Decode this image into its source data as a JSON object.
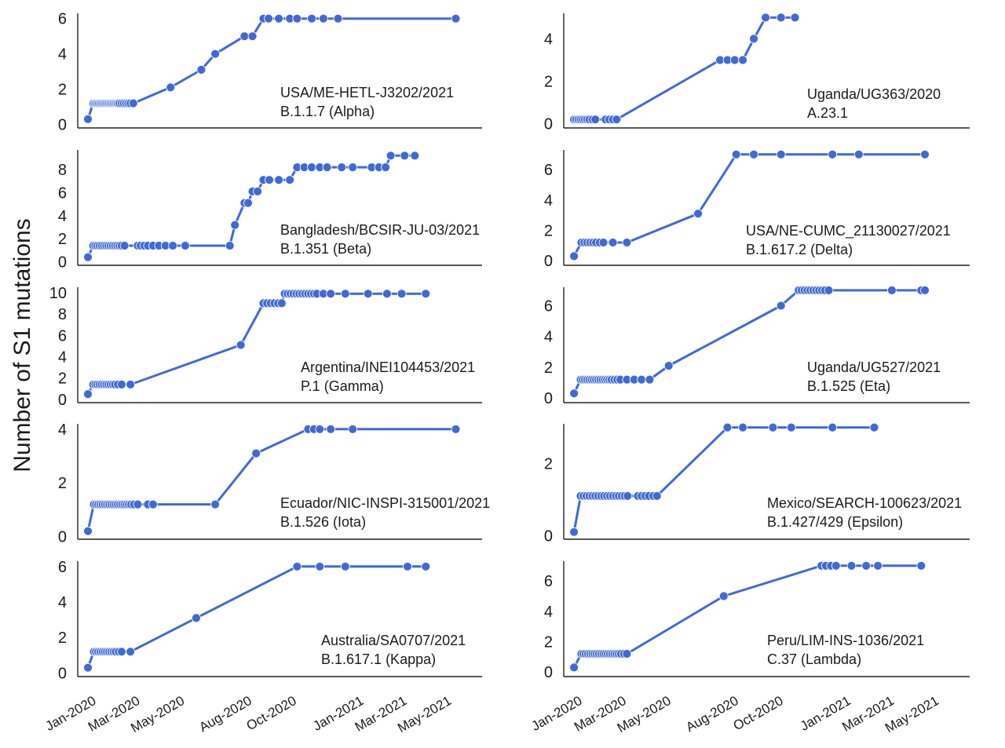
{
  "y_axis_label": "Number of S1 mutations",
  "chart_data": [
    {
      "type": "line",
      "strain": "USA/ME-HETL-J3202/2021",
      "lineage": "B.1.1.7 (Alpha)",
      "yticks": [
        0,
        2,
        4,
        6
      ],
      "ylim": [
        -0.2,
        6.3
      ],
      "x": [
        "2019-12-24",
        "2019-12-31",
        "2020-01-02",
        "2020-01-04",
        "2020-01-06",
        "2020-01-08",
        "2020-01-10",
        "2020-01-12",
        "2020-01-14",
        "2020-01-16",
        "2020-01-18",
        "2020-01-20",
        "2020-01-22",
        "2020-01-24",
        "2020-01-26",
        "2020-01-28",
        "2020-01-30",
        "2020-02-01",
        "2020-02-03",
        "2020-02-05",
        "2020-02-08",
        "2020-02-11",
        "2020-02-14",
        "2020-02-17",
        "2020-02-20",
        "2020-02-24",
        "2020-04-15",
        "2020-05-27",
        "2020-06-15",
        "2020-07-25",
        "2020-08-05",
        "2020-08-20",
        "2020-08-27",
        "2020-09-10",
        "2020-09-25",
        "2020-10-05",
        "2020-10-25",
        "2020-11-10",
        "2020-11-30",
        "2021-05-10"
      ],
      "y": [
        0.3,
        1.2,
        1.2,
        1.2,
        1.2,
        1.2,
        1.2,
        1.2,
        1.2,
        1.2,
        1.2,
        1.2,
        1.2,
        1.2,
        1.2,
        1.2,
        1.2,
        1.2,
        1.2,
        1.2,
        1.2,
        1.2,
        1.2,
        1.2,
        1.2,
        1.2,
        2.1,
        3.1,
        4.0,
        5.0,
        5.0,
        6.0,
        6.0,
        6.0,
        6.0,
        6.0,
        6.0,
        6.0,
        6.0,
        6.0
      ]
    },
    {
      "type": "line",
      "strain": "Uganda/UG363/2020",
      "lineage": "A.23.1",
      "yticks": [
        0,
        2,
        4
      ],
      "ylim": [
        -0.2,
        5.2
      ],
      "x": [
        "2019-12-24",
        "2019-12-27",
        "2019-12-30",
        "2020-01-02",
        "2020-01-05",
        "2020-01-08",
        "2020-01-11",
        "2020-01-14",
        "2020-01-18",
        "2020-01-22",
        "2020-02-05",
        "2020-02-10",
        "2020-02-15",
        "2020-02-20",
        "2020-07-10",
        "2020-07-20",
        "2020-07-30",
        "2020-08-10",
        "2020-08-25",
        "2020-09-10",
        "2020-10-01",
        "2020-10-20"
      ],
      "y": [
        0.2,
        0.2,
        0.2,
        0.2,
        0.2,
        0.2,
        0.2,
        0.2,
        0.2,
        0.2,
        0.2,
        0.2,
        0.2,
        0.2,
        3.0,
        3.0,
        3.0,
        3.0,
        4.0,
        5.0,
        5.0,
        5.0
      ]
    },
    {
      "type": "line",
      "strain": "Bangladesh/BCSIR-JU-03/2021",
      "lineage": "B.1.351 (Beta)",
      "yticks": [
        0,
        2,
        4,
        6,
        8
      ],
      "ylim": [
        -0.3,
        9.7
      ],
      "x": [
        "2019-12-24",
        "2019-12-31",
        "2020-01-03",
        "2020-01-06",
        "2020-01-09",
        "2020-01-12",
        "2020-01-15",
        "2020-01-18",
        "2020-01-21",
        "2020-01-24",
        "2020-01-27",
        "2020-01-30",
        "2020-02-02",
        "2020-02-05",
        "2020-02-08",
        "2020-02-12",
        "2020-03-01",
        "2020-03-05",
        "2020-03-10",
        "2020-03-15",
        "2020-03-22",
        "2020-03-30",
        "2020-04-08",
        "2020-04-18",
        "2020-05-05",
        "2020-07-05",
        "2020-07-12",
        "2020-07-25",
        "2020-07-30",
        "2020-08-05",
        "2020-08-12",
        "2020-08-20",
        "2020-08-28",
        "2020-09-10",
        "2020-09-25",
        "2020-10-05",
        "2020-10-15",
        "2020-10-25",
        "2020-11-05",
        "2020-11-15",
        "2020-12-05",
        "2020-12-20",
        "2021-01-15",
        "2021-01-25",
        "2021-02-03",
        "2021-02-10",
        "2021-03-01",
        "2021-03-15"
      ],
      "y": [
        0.4,
        1.4,
        1.4,
        1.4,
        1.4,
        1.4,
        1.4,
        1.4,
        1.4,
        1.4,
        1.4,
        1.4,
        1.4,
        1.4,
        1.4,
        1.4,
        1.4,
        1.4,
        1.4,
        1.4,
        1.4,
        1.4,
        1.4,
        1.4,
        1.4,
        1.4,
        3.2,
        5.1,
        5.1,
        6.1,
        6.1,
        7.1,
        7.1,
        7.1,
        7.1,
        8.2,
        8.2,
        8.2,
        8.2,
        8.2,
        8.2,
        8.2,
        8.2,
        8.2,
        8.2,
        9.2,
        9.2,
        9.2
      ]
    },
    {
      "type": "line",
      "strain": "USA/NE-CUMC_21130027/2021",
      "lineage": "B.1.617.2 (Delta)",
      "yticks": [
        0,
        2,
        4,
        6
      ],
      "ylim": [
        -0.3,
        7.3
      ],
      "x": [
        "2019-12-24",
        "2020-01-03",
        "2020-01-07",
        "2020-01-11",
        "2020-01-15",
        "2020-01-19",
        "2020-01-23",
        "2020-01-28",
        "2020-02-02",
        "2020-02-15",
        "2020-03-05",
        "2020-06-10",
        "2020-08-01",
        "2020-08-25",
        "2020-10-01",
        "2020-12-10",
        "2021-01-15",
        "2021-04-15"
      ],
      "y": [
        0.3,
        1.2,
        1.2,
        1.2,
        1.2,
        1.2,
        1.2,
        1.2,
        1.2,
        1.2,
        1.2,
        3.1,
        7.0,
        7.0,
        7.0,
        7.0,
        7.0,
        7.0
      ]
    },
    {
      "type": "line",
      "strain": "Argentina/INEI104453/2021",
      "lineage": "P.1 (Gamma)",
      "yticks": [
        0,
        2,
        4,
        6,
        8,
        10
      ],
      "ylim": [
        -0.3,
        10.5
      ],
      "x": [
        "2019-12-24",
        "2019-12-31",
        "2020-01-03",
        "2020-01-06",
        "2020-01-09",
        "2020-01-12",
        "2020-01-15",
        "2020-01-18",
        "2020-01-21",
        "2020-01-24",
        "2020-01-27",
        "2020-01-30",
        "2020-02-03",
        "2020-02-08",
        "2020-02-20",
        "2020-07-20",
        "2020-08-20",
        "2020-08-25",
        "2020-08-30",
        "2020-09-04",
        "2020-09-09",
        "2020-09-14",
        "2020-09-18",
        "2020-09-22",
        "2020-09-26",
        "2020-09-30",
        "2020-10-04",
        "2020-10-08",
        "2020-10-12",
        "2020-10-16",
        "2020-10-20",
        "2020-10-24",
        "2020-10-28",
        "2020-11-01",
        "2020-11-10",
        "2020-11-20",
        "2020-12-10",
        "2021-01-10",
        "2021-02-05",
        "2021-02-25",
        "2021-03-30"
      ],
      "y": [
        0.5,
        1.4,
        1.4,
        1.4,
        1.4,
        1.4,
        1.4,
        1.4,
        1.4,
        1.4,
        1.4,
        1.4,
        1.4,
        1.4,
        1.4,
        5.1,
        9.0,
        9.0,
        9.0,
        9.0,
        9.0,
        9.0,
        9.9,
        9.9,
        9.9,
        9.9,
        9.9,
        9.9,
        9.9,
        9.9,
        9.9,
        9.9,
        9.9,
        9.9,
        9.9,
        9.9,
        9.9,
        9.9,
        9.9,
        9.9,
        9.9
      ]
    },
    {
      "type": "line",
      "strain": "Uganda/UG527/2021",
      "lineage": "B.1.525 (Eta)",
      "yticks": [
        0,
        2,
        4,
        6
      ],
      "ylim": [
        -0.3,
        7.2
      ],
      "x": [
        "2019-12-24",
        "2020-01-02",
        "2020-01-05",
        "2020-01-08",
        "2020-01-11",
        "2020-01-14",
        "2020-01-17",
        "2020-01-20",
        "2020-01-23",
        "2020-01-26",
        "2020-01-29",
        "2020-02-01",
        "2020-02-04",
        "2020-02-07",
        "2020-02-10",
        "2020-02-13",
        "2020-02-17",
        "2020-02-21",
        "2020-02-25",
        "2020-03-05",
        "2020-03-15",
        "2020-03-25",
        "2020-04-05",
        "2020-05-01",
        "2020-10-01",
        "2020-10-25",
        "2020-10-29",
        "2020-11-02",
        "2020-11-06",
        "2020-11-10",
        "2020-11-14",
        "2020-11-18",
        "2020-11-22",
        "2020-11-26",
        "2020-11-30",
        "2020-12-05",
        "2021-03-01",
        "2021-04-10",
        "2021-04-15"
      ],
      "y": [
        0.3,
        1.2,
        1.2,
        1.2,
        1.2,
        1.2,
        1.2,
        1.2,
        1.2,
        1.2,
        1.2,
        1.2,
        1.2,
        1.2,
        1.2,
        1.2,
        1.2,
        1.2,
        1.2,
        1.2,
        1.2,
        1.2,
        1.2,
        2.1,
        6.0,
        7.0,
        7.0,
        7.0,
        7.0,
        7.0,
        7.0,
        7.0,
        7.0,
        7.0,
        7.0,
        7.0,
        7.0,
        7.0,
        7.0
      ]
    },
    {
      "type": "line",
      "strain": "Ecuador/NIC-INSPI-315001/2021",
      "lineage": "B.1.526 (Iota)",
      "yticks": [
        0,
        2,
        4
      ],
      "ylim": [
        -0.1,
        4.2
      ],
      "x": [
        "2019-12-24",
        "2020-01-01",
        "2020-01-04",
        "2020-01-07",
        "2020-01-10",
        "2020-01-13",
        "2020-01-16",
        "2020-01-19",
        "2020-01-22",
        "2020-01-25",
        "2020-01-28",
        "2020-01-31",
        "2020-02-03",
        "2020-02-06",
        "2020-02-09",
        "2020-02-12",
        "2020-02-15",
        "2020-02-18",
        "2020-02-21",
        "2020-02-25",
        "2020-03-01",
        "2020-03-15",
        "2020-03-22",
        "2020-06-15",
        "2020-08-10",
        "2020-10-20",
        "2020-10-28",
        "2020-11-05",
        "2020-11-20",
        "2020-12-20",
        "2021-05-10"
      ],
      "y": [
        0.2,
        1.2,
        1.2,
        1.2,
        1.2,
        1.2,
        1.2,
        1.2,
        1.2,
        1.2,
        1.2,
        1.2,
        1.2,
        1.2,
        1.2,
        1.2,
        1.2,
        1.2,
        1.2,
        1.2,
        1.2,
        1.2,
        1.2,
        1.2,
        3.1,
        4.0,
        4.0,
        4.0,
        4.0,
        4.0,
        4.0
      ]
    },
    {
      "type": "line",
      "strain": "Mexico/SEARCH-100623/2021",
      "lineage": "B.1.427/429 (Epsilon)",
      "yticks": [
        0,
        2
      ],
      "ylim": [
        -0.1,
        3.1
      ],
      "x": [
        "2019-12-24",
        "2020-01-02",
        "2020-01-06",
        "2020-01-10",
        "2020-01-14",
        "2020-01-18",
        "2020-01-22",
        "2020-01-26",
        "2020-01-30",
        "2020-02-03",
        "2020-02-07",
        "2020-02-11",
        "2020-02-15",
        "2020-02-19",
        "2020-02-23",
        "2020-02-27",
        "2020-03-02",
        "2020-03-06",
        "2020-03-20",
        "2020-03-25",
        "2020-03-30",
        "2020-04-04",
        "2020-04-10",
        "2020-04-15",
        "2020-07-20",
        "2020-08-10",
        "2020-09-20",
        "2020-10-15",
        "2020-12-10",
        "2021-02-05"
      ],
      "y": [
        0.1,
        1.1,
        1.1,
        1.1,
        1.1,
        1.1,
        1.1,
        1.1,
        1.1,
        1.1,
        1.1,
        1.1,
        1.1,
        1.1,
        1.1,
        1.1,
        1.1,
        1.1,
        1.1,
        1.1,
        1.1,
        1.1,
        1.1,
        1.1,
        3.0,
        3.0,
        3.0,
        3.0,
        3.0,
        3.0
      ]
    },
    {
      "type": "line",
      "strain": "Australia/SA0707/2021",
      "lineage": "B.1.617.1 (Kappa)",
      "yticks": [
        0,
        2,
        4,
        6
      ],
      "ylim": [
        -0.2,
        6.3
      ],
      "x": [
        "2019-12-24",
        "2020-01-01",
        "2020-01-04",
        "2020-01-07",
        "2020-01-10",
        "2020-01-13",
        "2020-01-16",
        "2020-01-19",
        "2020-01-22",
        "2020-01-25",
        "2020-01-28",
        "2020-01-31",
        "2020-02-04",
        "2020-02-08",
        "2020-02-20",
        "2020-05-20",
        "2020-10-05",
        "2020-11-05",
        "2020-12-10",
        "2021-03-05",
        "2021-03-30"
      ],
      "y": [
        0.3,
        1.2,
        1.2,
        1.2,
        1.2,
        1.2,
        1.2,
        1.2,
        1.2,
        1.2,
        1.2,
        1.2,
        1.2,
        1.2,
        1.2,
        3.1,
        6.0,
        6.0,
        6.0,
        6.0,
        6.0
      ]
    },
    {
      "type": "line",
      "strain": "Peru/LIM-INS-1036/2021",
      "lineage": "C.37 (Lambda)",
      "yticks": [
        0,
        2,
        4,
        6
      ],
      "ylim": [
        -0.3,
        7.3
      ],
      "x": [
        "2019-12-24",
        "2020-01-03",
        "2020-01-06",
        "2020-01-09",
        "2020-01-12",
        "2020-01-15",
        "2020-01-18",
        "2020-01-21",
        "2020-01-24",
        "2020-01-27",
        "2020-01-30",
        "2020-02-02",
        "2020-02-05",
        "2020-02-08",
        "2020-02-11",
        "2020-02-14",
        "2020-02-17",
        "2020-02-20",
        "2020-02-23",
        "2020-02-26",
        "2020-03-01",
        "2020-03-05",
        "2020-07-15",
        "2020-11-25",
        "2020-12-01",
        "2020-12-08",
        "2020-12-15",
        "2021-01-05",
        "2021-01-25",
        "2021-02-10",
        "2021-04-10"
      ],
      "y": [
        0.3,
        1.2,
        1.2,
        1.2,
        1.2,
        1.2,
        1.2,
        1.2,
        1.2,
        1.2,
        1.2,
        1.2,
        1.2,
        1.2,
        1.2,
        1.2,
        1.2,
        1.2,
        1.2,
        1.2,
        1.2,
        1.2,
        5.0,
        7.0,
        7.0,
        7.0,
        7.0,
        7.0,
        7.0,
        7.0,
        7.0
      ]
    }
  ],
  "x_axis": {
    "ticks": [
      "Jan-2020",
      "Mar-2020",
      "May-2020",
      "Aug-2020",
      "Oct-2020",
      "Jan-2021",
      "Mar-2021",
      "May-2021"
    ],
    "tick_dates": [
      "2020-01-01",
      "2020-03-01",
      "2020-05-01",
      "2020-08-01",
      "2020-10-01",
      "2021-01-01",
      "2021-03-01",
      "2021-05-01"
    ],
    "range": [
      "2019-12-10",
      "2021-06-15"
    ]
  },
  "colors": {
    "line": "#4169d6",
    "marker": "#4169d6",
    "axis": "#222222"
  }
}
